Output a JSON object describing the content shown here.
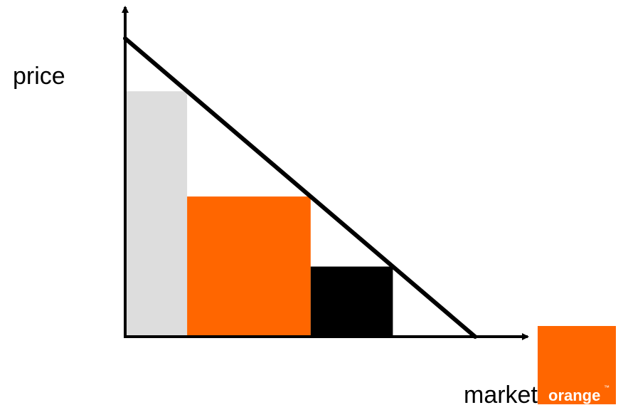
{
  "labels": {
    "y_axis": "price",
    "x_axis": "market"
  },
  "logo": {
    "text": "orange",
    "trademark": "™"
  },
  "colors": {
    "segment_1": "#dddddd",
    "segment_2": "#ff6600",
    "segment_3": "#000000",
    "line": "#000000",
    "logo_bg": "#ff6600"
  },
  "segments": [
    {
      "name": "segment-1",
      "color_key": "segment_1",
      "start": 0.0,
      "end": 0.177
    },
    {
      "name": "segment-2",
      "color_key": "segment_2",
      "start": 0.177,
      "end": 0.53
    },
    {
      "name": "segment-3",
      "color_key": "segment_3",
      "start": 0.53,
      "end": 0.765
    }
  ]
}
